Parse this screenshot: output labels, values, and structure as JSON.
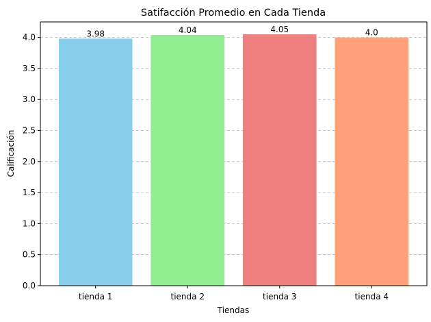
{
  "chart_data": {
    "type": "bar",
    "title": "Satifacción Promedio en Cada Tienda",
    "xlabel": "Tiendas",
    "ylabel": "Calificación",
    "categories": [
      "tienda 1",
      "tienda 2",
      "tienda 3",
      "tienda 4"
    ],
    "values": [
      3.98,
      4.04,
      4.05,
      4.0
    ],
    "value_labels": [
      "3.98",
      "4.04",
      "4.05",
      "4.0"
    ],
    "colors": [
      "#87ceeb",
      "#90ee90",
      "#f08080",
      "#ffa07a"
    ],
    "ylim": [
      0,
      4.25
    ],
    "yticks": [
      0.0,
      0.5,
      1.0,
      1.5,
      2.0,
      2.5,
      3.0,
      3.5,
      4.0
    ],
    "ytick_labels": [
      "0.0",
      "0.5",
      "1.0",
      "1.5",
      "2.0",
      "2.5",
      "3.0",
      "3.5",
      "4.0"
    ],
    "grid": "y-dashed",
    "legend": "none"
  }
}
